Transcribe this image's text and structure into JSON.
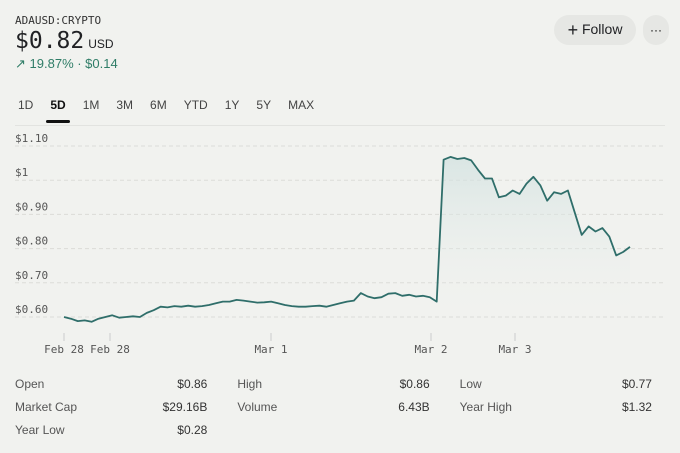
{
  "header": {
    "symbol": "ADAUSD:CRYPTO",
    "price": "$0.82",
    "currency": "USD",
    "change": "19.87% · $0.14",
    "change_icon": "arrow-up-right-icon",
    "follow_label": "Follow",
    "more_label": "···"
  },
  "tabs": [
    {
      "label": "1D"
    },
    {
      "label": "5D",
      "active": true
    },
    {
      "label": "1M"
    },
    {
      "label": "3M"
    },
    {
      "label": "6M"
    },
    {
      "label": "YTD"
    },
    {
      "label": "1Y"
    },
    {
      "label": "5Y"
    },
    {
      "label": "MAX"
    }
  ],
  "colors": {
    "line": "#2f6e6a",
    "accent": "#2f7d67"
  },
  "chart_data": {
    "type": "area",
    "ylim": [
      0.6,
      1.1
    ],
    "grid": true,
    "yticks": [
      "$1.10",
      "$1",
      "$0.90",
      "$0.80",
      "$0.70",
      "$0.60"
    ],
    "xticks": [
      "Feb 28",
      "Feb 28",
      "Mar 1",
      "Mar 2",
      "Mar 3"
    ],
    "values": [
      0.6,
      0.595,
      0.588,
      0.59,
      0.586,
      0.595,
      0.6,
      0.605,
      0.598,
      0.6,
      0.602,
      0.6,
      0.612,
      0.62,
      0.63,
      0.628,
      0.632,
      0.63,
      0.633,
      0.63,
      0.632,
      0.635,
      0.64,
      0.645,
      0.645,
      0.65,
      0.648,
      0.645,
      0.642,
      0.643,
      0.645,
      0.64,
      0.635,
      0.632,
      0.63,
      0.63,
      0.632,
      0.633,
      0.63,
      0.635,
      0.64,
      0.645,
      0.648,
      0.67,
      0.66,
      0.655,
      0.658,
      0.668,
      0.67,
      0.662,
      0.665,
      0.66,
      0.662,
      0.658,
      0.645,
      1.06,
      1.068,
      1.062,
      1.065,
      1.058,
      1.03,
      1.005,
      1.005,
      0.95,
      0.955,
      0.97,
      0.96,
      0.99,
      1.01,
      0.985,
      0.94,
      0.965,
      0.96,
      0.97,
      0.905,
      0.84,
      0.865,
      0.85,
      0.86,
      0.835,
      0.78,
      0.79,
      0.805
    ]
  },
  "stats": [
    {
      "label": "Open",
      "value": "$0.86"
    },
    {
      "label": "High",
      "value": "$0.86"
    },
    {
      "label": "Low",
      "value": "$0.77"
    },
    {
      "label": "Market Cap",
      "value": "$29.16B"
    },
    {
      "label": "Volume",
      "value": "6.43B"
    },
    {
      "label": "Year High",
      "value": "$1.32"
    },
    {
      "label": "Year Low",
      "value": "$0.28"
    }
  ]
}
